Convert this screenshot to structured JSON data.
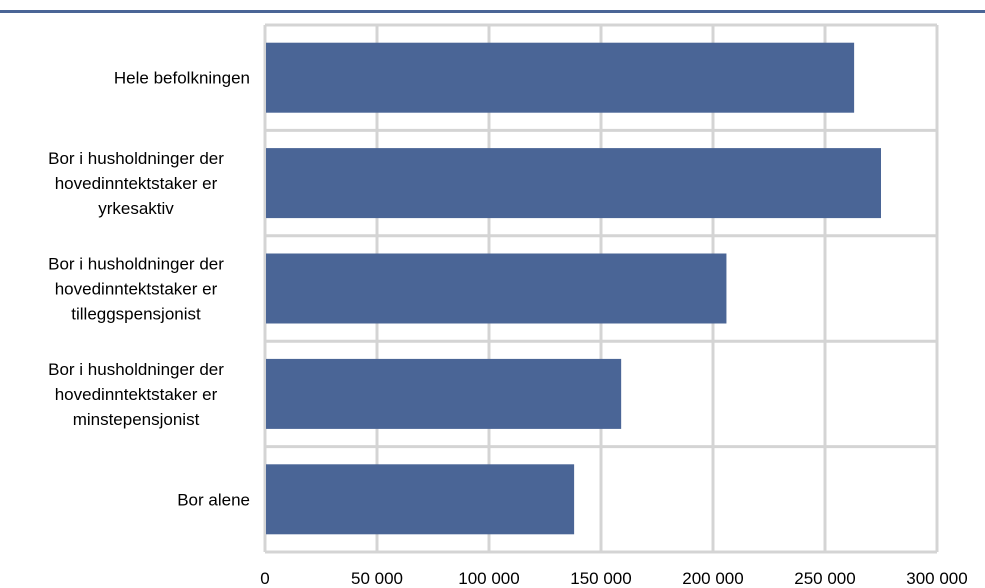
{
  "header": {
    "title": "",
    "rule_color": "#4a6596"
  },
  "chart_data": {
    "type": "bar",
    "orientation": "horizontal",
    "title": "",
    "xlabel": "",
    "ylabel": "",
    "xlim": [
      0,
      300000
    ],
    "x_ticks": [
      0,
      50000,
      100000,
      150000,
      200000,
      250000,
      300000
    ],
    "x_tick_labels": [
      "0",
      "50 000",
      "100 000",
      "150 000",
      "200 000",
      "250 000",
      "300 000"
    ],
    "categories": [
      {
        "lines": [
          "Hele befolkningen"
        ]
      },
      {
        "lines": [
          "Bor i husholdninger der",
          "hovedinntektstaker er",
          "yrkesaktiv"
        ]
      },
      {
        "lines": [
          "Bor i husholdninger der",
          "hovedinntektstaker er",
          "tilleggspensjonist"
        ]
      },
      {
        "lines": [
          "Bor i husholdninger der",
          "hovedinntektstaker er",
          "minstepensjonist"
        ]
      },
      {
        "lines": [
          "Bor alene"
        ]
      }
    ],
    "values": [
      263000,
      275000,
      206000,
      159000,
      138000
    ],
    "grid": true,
    "legend": "none",
    "colors": {
      "bar": "#4a6596",
      "grid": "#d4d4d4"
    }
  }
}
